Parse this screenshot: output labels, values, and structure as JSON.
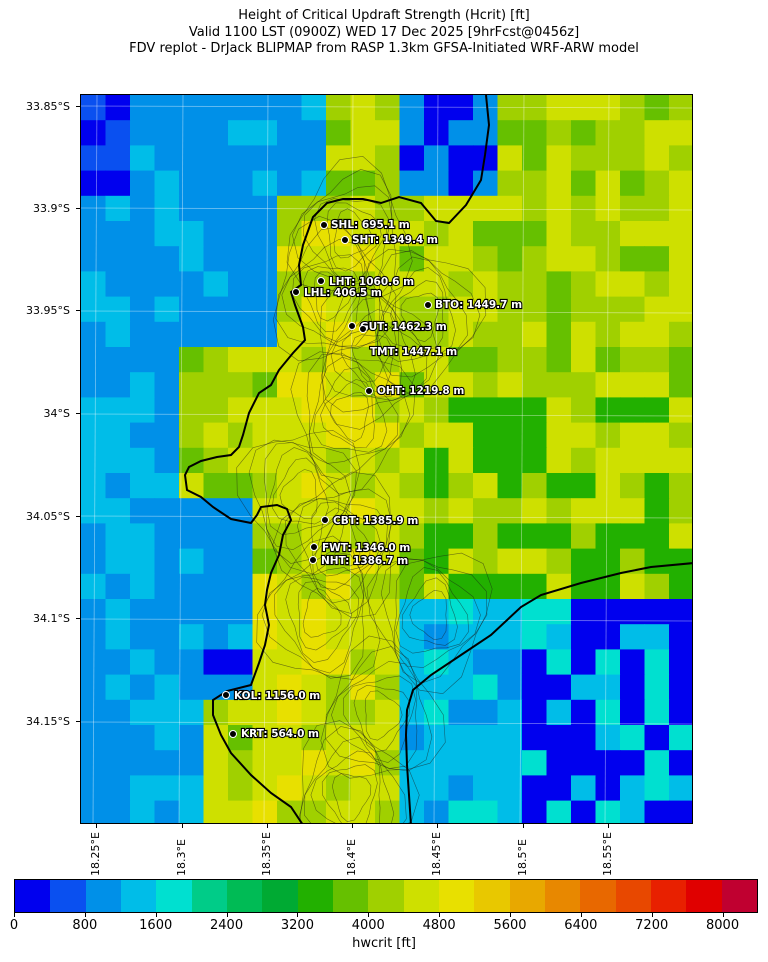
{
  "title": {
    "line1": "Height of Critical Updraft Strength (Hcrit) [ft]",
    "line2": "Valid 1100 LST (0900Z) WED 17 Dec 2025 [9hrFcst@0456z]",
    "line3": "FDV replot - DrJack BLIPMAP from RASP 1.3km GFSA-Initiated WRF-ARW model"
  },
  "axes": {
    "lat_labels": [
      "33.85°S",
      "33.9°S",
      "33.95°S",
      "34°S",
      "34.05°S",
      "34.1°S",
      "34.15°S"
    ],
    "lon_labels": [
      "18.25°E",
      "18.3°E",
      "18.35°E",
      "18.4°E",
      "18.45°E",
      "18.5°E",
      "18.55°E"
    ]
  },
  "colorbar": {
    "label": "hwcrit [ft]",
    "tick_labels": [
      "0",
      "800",
      "1600",
      "2400",
      "3200",
      "4000",
      "4800",
      "5600",
      "6400",
      "7200",
      "8000"
    ],
    "colors": [
      "#0000ee",
      "#0a50f0",
      "#0090e8",
      "#00bde8",
      "#00e0d0",
      "#00cc88",
      "#00bb55",
      "#00aa33",
      "#22b000",
      "#66c000",
      "#a0d000",
      "#cee000",
      "#e8e000",
      "#e8c800",
      "#e8a800",
      "#e88800",
      "#e86800",
      "#e84800",
      "#e82000",
      "#e00000",
      "#c00030"
    ]
  },
  "stations": [
    {
      "code": "SHL",
      "label": "SHL: 695.1 m"
    },
    {
      "code": "SHT",
      "label": "SHT: 1349.4 m"
    },
    {
      "code": "LHT",
      "label": "LHT: 1060.6 m"
    },
    {
      "code": "LHL",
      "label": "LHL: 406.5 m"
    },
    {
      "code": "BTO",
      "label": "BTO: 1449.7 m"
    },
    {
      "code": "GUT",
      "label": "GUT: 1462.3 m"
    },
    {
      "code": "TMT",
      "label": "TMT: 1447.1 m"
    },
    {
      "code": "OHT",
      "label": "OHT: 1219.8 m"
    },
    {
      "code": "CBT",
      "label": "CBT: 1385.9 m"
    },
    {
      "code": "FWT",
      "label": "FWT: 1346.0 m"
    },
    {
      "code": "NHT",
      "label": "NHT: 1386.7 m"
    },
    {
      "code": "KOL",
      "label": "KOL: 1156.0 m"
    },
    {
      "code": "KRT",
      "label": "KRT: 564.0 m"
    }
  ]
}
